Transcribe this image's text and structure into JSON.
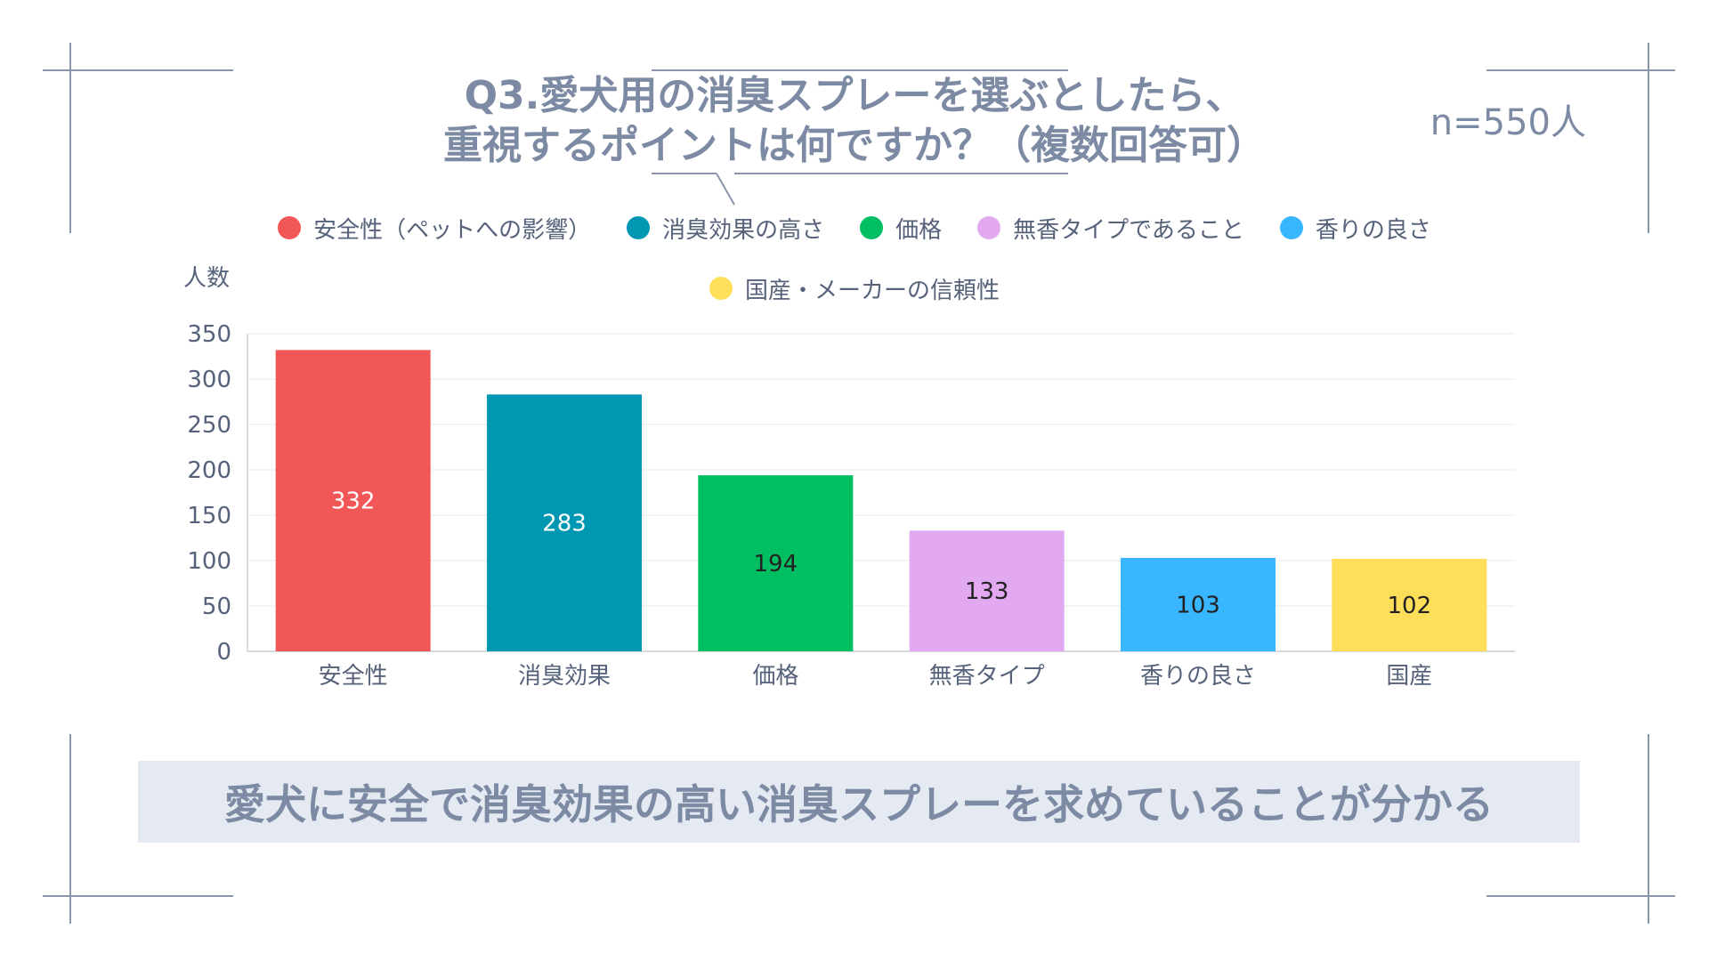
{
  "title": {
    "line1": "Q3.愛犬用の消臭スプレーを選ぶとしたら、",
    "line2": "重視するポイントは何ですか？（複数回答可）"
  },
  "sample_size": "n=550人",
  "legend": [
    {
      "label": "安全性（ペットへの影響）",
      "color": "#f25757"
    },
    {
      "label": "消臭効果の高さ",
      "color": "#0097b2"
    },
    {
      "label": "価格",
      "color": "#00bf63"
    },
    {
      "label": "無香タイプであること",
      "color": "#e2a9f1"
    },
    {
      "label": "香りの良さ",
      "color": "#38b6ff"
    },
    {
      "label": "国産・メーカーの信頼性",
      "color": "#ffde59"
    }
  ],
  "chart_data": {
    "type": "bar",
    "title": "Q3.愛犬用の消臭スプレーを選ぶとしたら、重視するポイントは何ですか？（複数回答可）",
    "ylabel": "人数",
    "xlabel": "",
    "categories": [
      "安全性",
      "消臭効果",
      "価格",
      "無香タイプ",
      "香りの良さ",
      "国産"
    ],
    "values": [
      332,
      283,
      194,
      133,
      103,
      102
    ],
    "colors": [
      "#f25757",
      "#0097b2",
      "#00bf63",
      "#e2a9f1",
      "#38b6ff",
      "#ffde59"
    ],
    "label_colors": [
      "#ffffff",
      "#ffffff",
      "#222222",
      "#222222",
      "#222222",
      "#222222"
    ],
    "ylim": [
      0,
      350
    ],
    "yticks": [
      0,
      50,
      100,
      150,
      200,
      250,
      300,
      350
    ],
    "grid": true,
    "legend_position": "top"
  },
  "conclusion": "愛犬に安全で消臭効果の高い消臭スプレーを求めていることが分かる",
  "colors": {
    "text_muted": "#7d8aa3",
    "text_axis": "#56627a",
    "frame_line": "#8a95ab",
    "grid": "#e6e9ef",
    "conclusion_bg": "#e4e9f2"
  }
}
